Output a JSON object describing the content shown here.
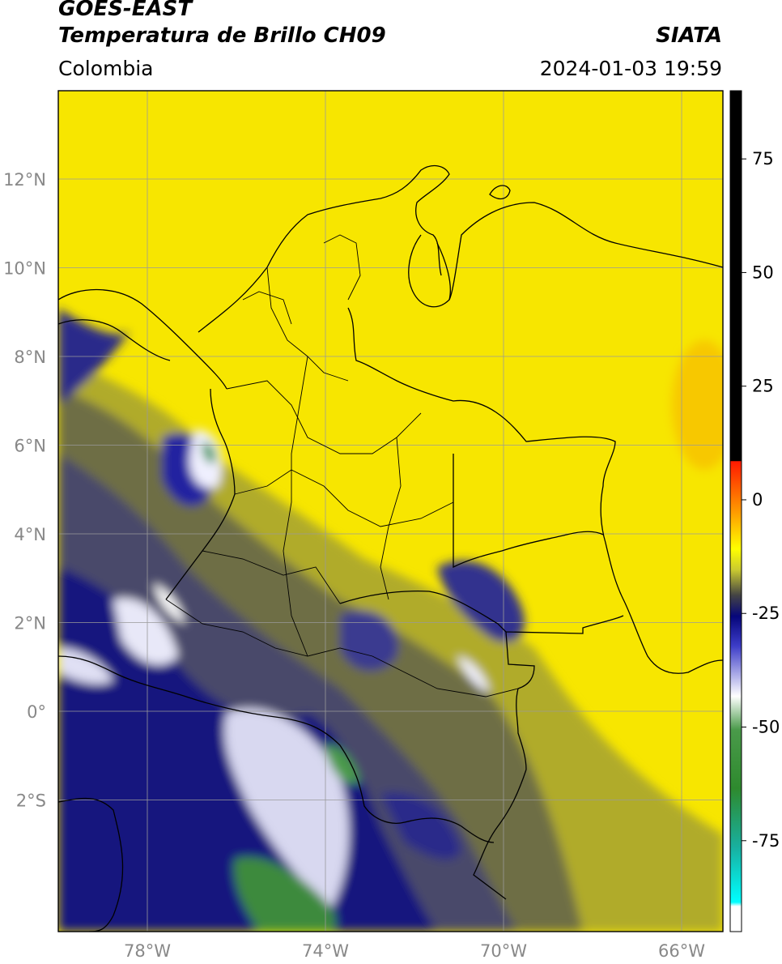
{
  "header": {
    "satellite": "GOES-EAST",
    "product": "Temperatura de Brillo CH09",
    "region": "Colombia",
    "source": "SIATA",
    "datetime": "2024-01-03 19:59"
  },
  "axes": {
    "lat_labels": [
      "12°N",
      "10°N",
      "8°N",
      "6°N",
      "4°N",
      "2°N",
      "0°",
      "2°S"
    ],
    "lon_labels": [
      "78°W",
      "74°W",
      "70°W",
      "66°W"
    ],
    "lon_range": [
      -80,
      -65
    ],
    "lat_range": [
      -5,
      14
    ]
  },
  "colorbar": {
    "tick_labels": [
      "75",
      "50",
      "25",
      "0",
      "-25",
      "-50",
      "-75"
    ],
    "range": [
      -95,
      90
    ],
    "colors": {
      "black": "#000000",
      "red": "#ff1a00",
      "orange": "#ff9900",
      "yellow": "#ffff00",
      "olive": "#9e9e30",
      "gray": "#444444",
      "navy": "#06067a",
      "blue": "#2828b8",
      "white": "#ffffff",
      "green": "#2e8a2e",
      "teal": "#18b0a0",
      "cyan": "#00ffff"
    }
  }
}
